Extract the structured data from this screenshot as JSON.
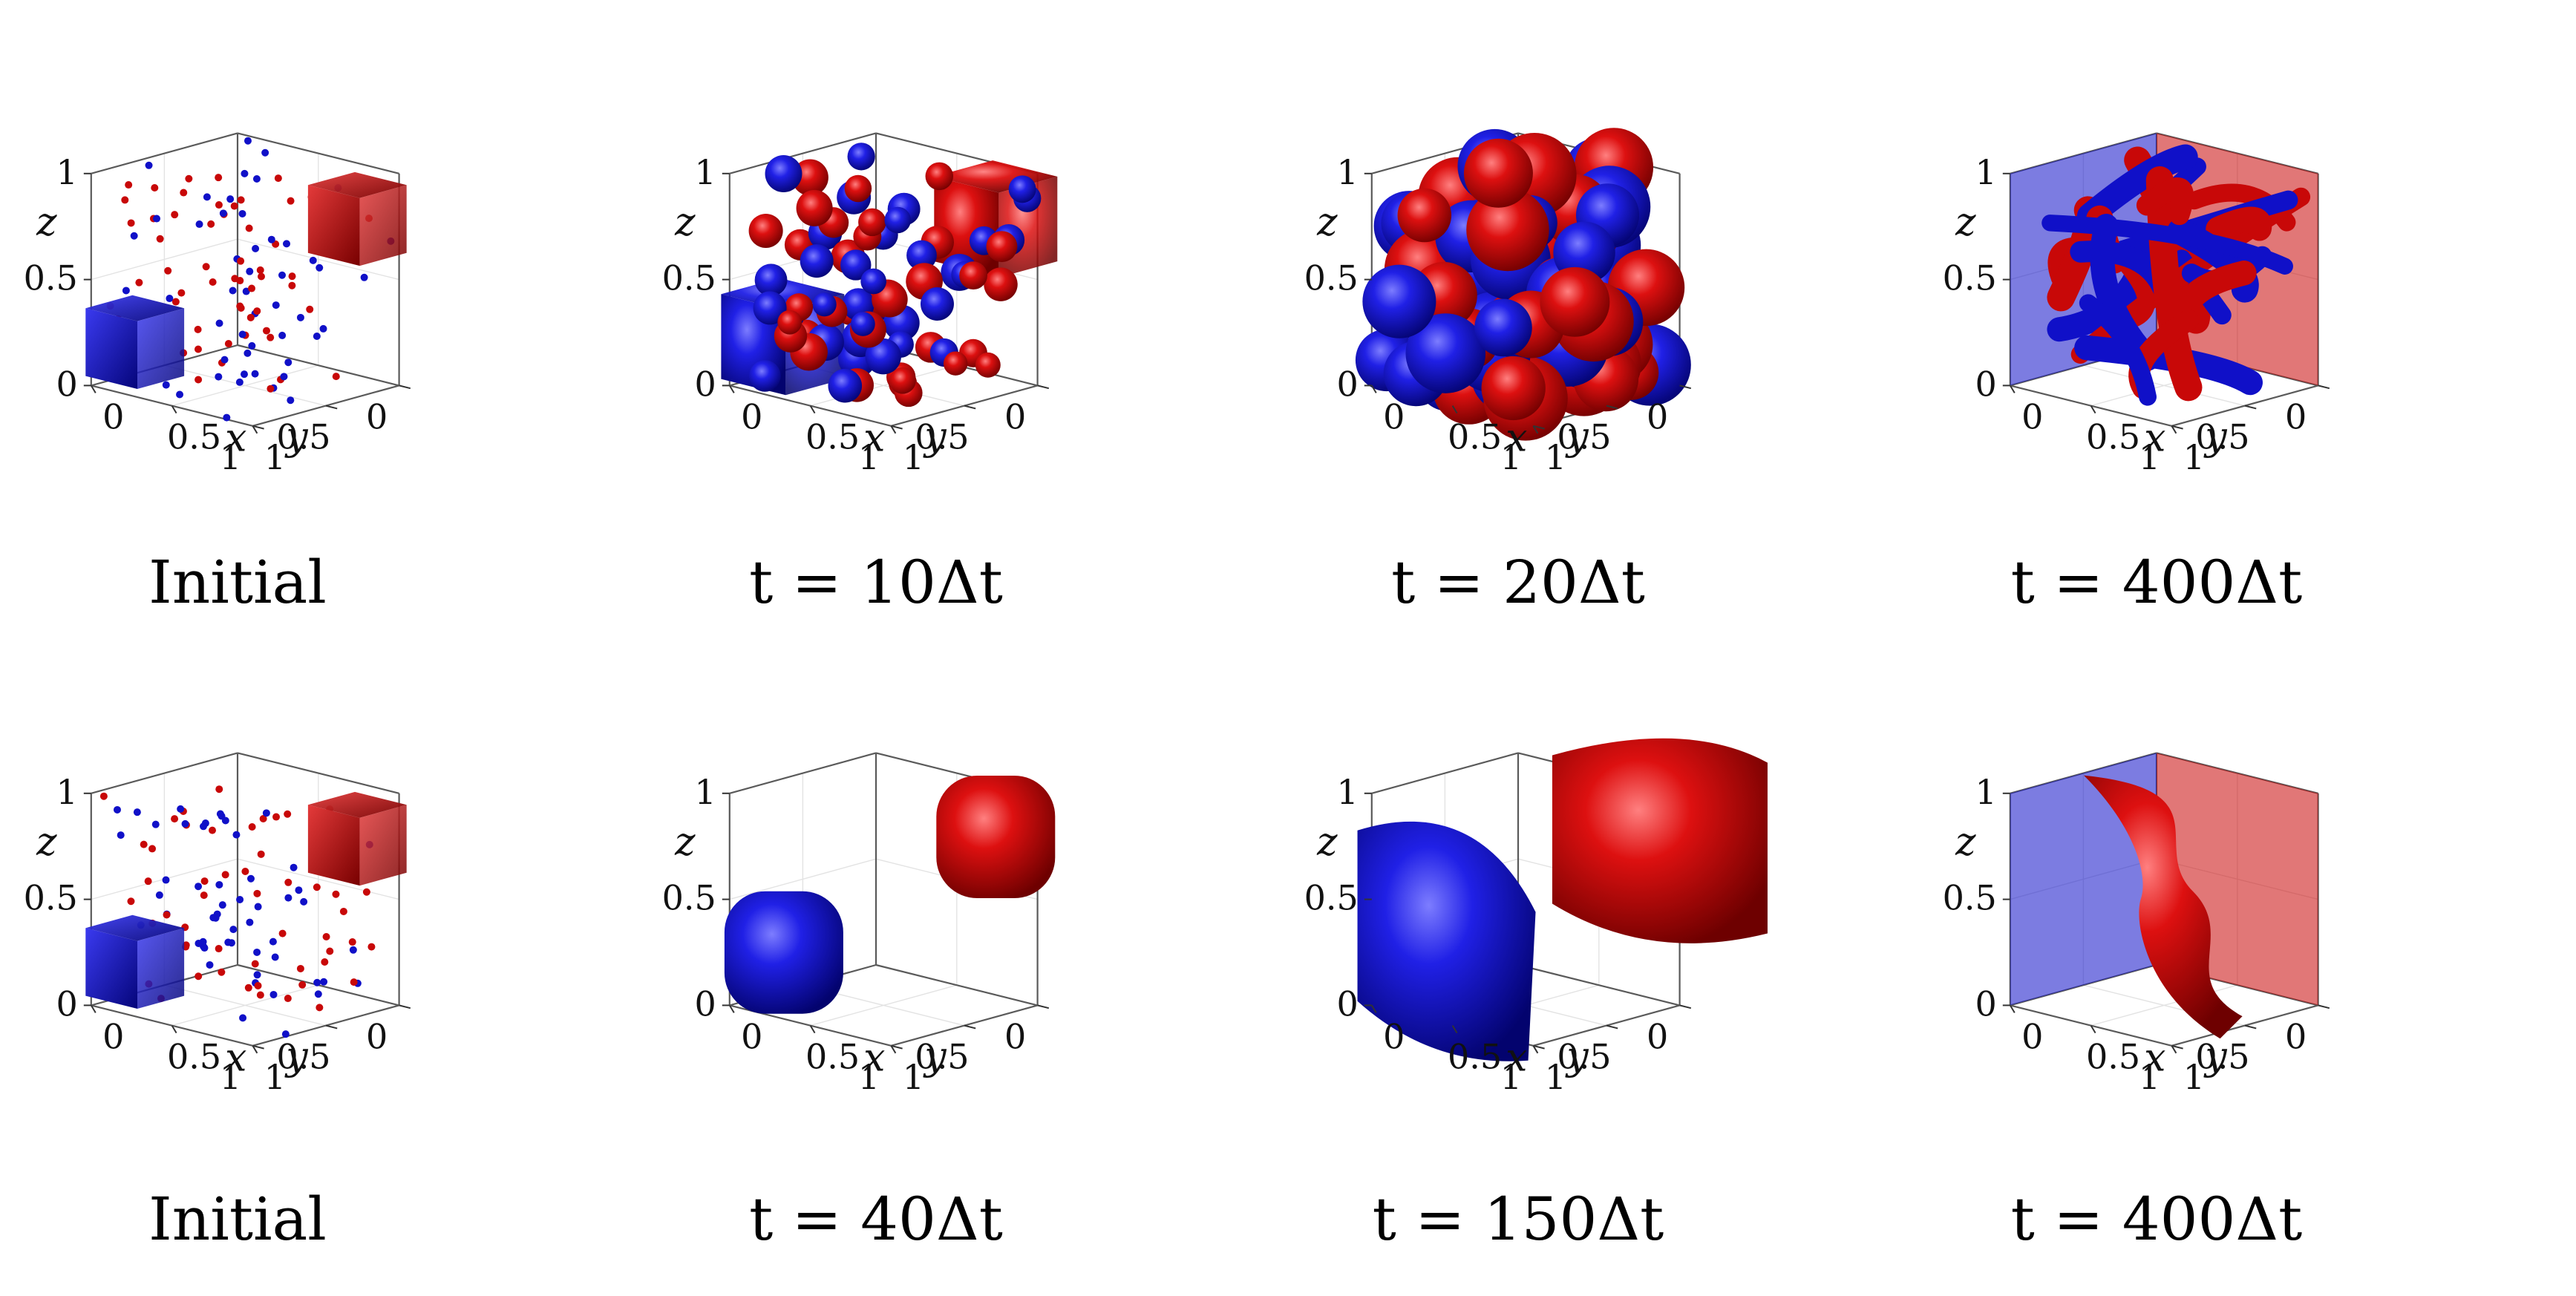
{
  "figure": {
    "colors": {
      "phase_a": "#1010c8",
      "phase_b": "#c80808",
      "axis": "#5a5a5a"
    },
    "axes": {
      "x_label": "x",
      "y_label": "y",
      "z_label": "z",
      "x_ticks": [
        "0",
        "0.5",
        "1"
      ],
      "y_ticks": [
        "1",
        "0.5",
        "0"
      ],
      "z_ticks": [
        "0",
        "0.5",
        "1"
      ]
    },
    "rows": [
      {
        "panels": [
          {
            "caption": "Initial",
            "scene": "initial"
          },
          {
            "caption": "t = 10Δt",
            "scene": "droplets"
          },
          {
            "caption": "t = 20Δt",
            "scene": "dense"
          },
          {
            "caption": "t = 400Δt",
            "scene": "network"
          }
        ]
      },
      {
        "panels": [
          {
            "caption": "Initial",
            "scene": "initial"
          },
          {
            "caption": "t = 40Δt",
            "scene": "rounded"
          },
          {
            "caption": "t = 150Δt",
            "scene": "growing"
          },
          {
            "caption": "t = 400Δt",
            "scene": "interface"
          }
        ]
      }
    ]
  }
}
